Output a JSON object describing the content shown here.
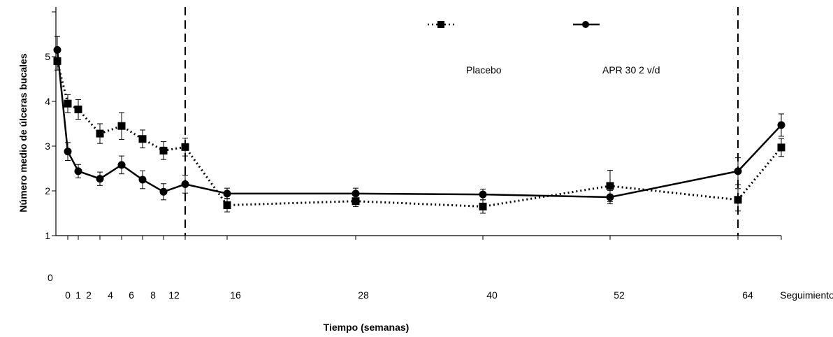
{
  "chart_data": {
    "type": "line",
    "title": "",
    "xlabel": "Tiempo (semanas)",
    "ylabel": "Número medio de úlceras bucales",
    "ylim": [
      1,
      6
    ],
    "y_ticks": [
      "1",
      "2",
      "3",
      "4",
      "5"
    ],
    "y_zero_label": "0",
    "x_tick_labels": [
      "0",
      "1",
      "2",
      "4",
      "6",
      "8",
      "12",
      "16",
      "28",
      "40",
      "52",
      "64",
      "Seguimiento"
    ],
    "grid": false,
    "legend_position": "top-right",
    "vertical_reference_lines_weeks": [
      12,
      64
    ],
    "x": [
      0,
      1,
      2,
      4,
      6,
      8,
      10,
      12,
      16,
      28,
      40,
      52,
      64,
      67.5
    ],
    "series": [
      {
        "name": "Placebo",
        "style": "dotted",
        "marker": "square",
        "color": "#000000",
        "values": [
          4.9,
          3.95,
          3.82,
          3.28,
          3.45,
          3.16,
          2.9,
          2.98,
          1.68,
          1.77,
          1.65,
          2.11,
          1.8,
          2.97
        ],
        "errors": [
          0.2,
          0.2,
          0.22,
          0.22,
          0.3,
          0.2,
          0.2,
          0.2,
          0.15,
          0.12,
          0.15,
          0.35,
          0.25,
          0.2
        ]
      },
      {
        "name": "APR 30 2 v/d",
        "style": "solid",
        "marker": "circle",
        "color": "#000000",
        "values": [
          5.15,
          2.88,
          2.44,
          2.27,
          2.58,
          2.25,
          1.98,
          2.15,
          1.94,
          1.94,
          1.92,
          1.86,
          2.44,
          3.47
        ],
        "errors": [
          0.3,
          0.2,
          0.15,
          0.15,
          0.2,
          0.2,
          0.18,
          0.2,
          0.12,
          0.12,
          0.12,
          0.15,
          0.3,
          0.25
        ]
      }
    ]
  }
}
